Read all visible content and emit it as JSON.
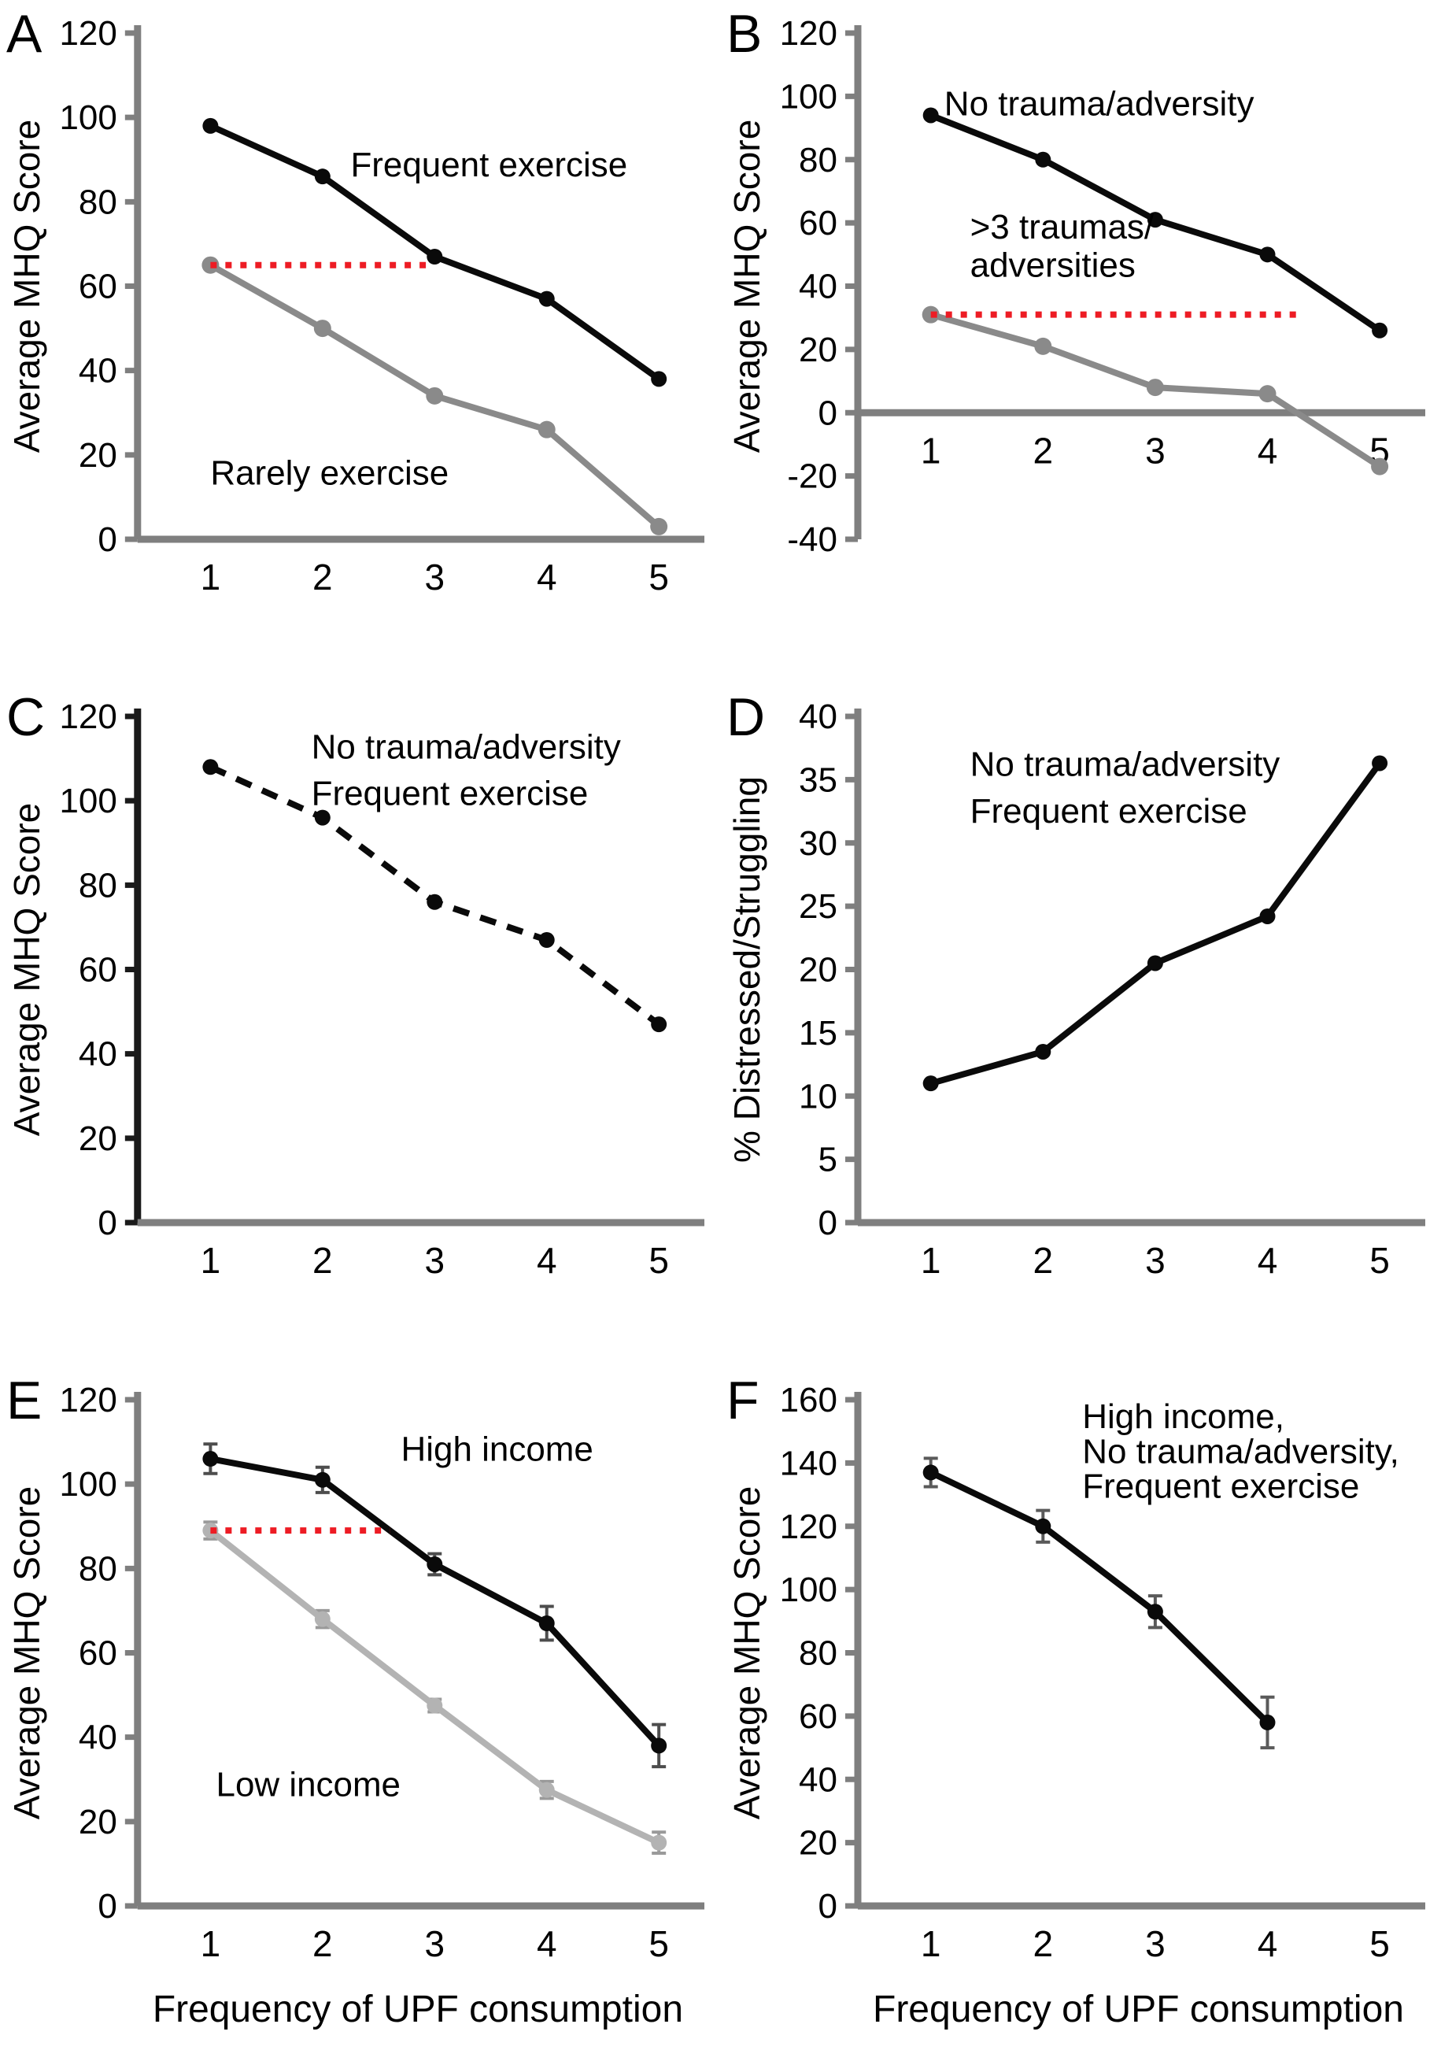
{
  "figure_title": "Six-panel line figure: MHQ outcomes by frequency of UPF consumption",
  "style": {
    "axis_color": "#7f7f7f",
    "black_series_color": "#0a0a0a",
    "gray_series_color": "#8a8a8a",
    "light_gray_series_color": "#b3b3b3",
    "ref_line_color": "#ed1c24",
    "panel_c_yaxis_color": "#1a1a1a"
  },
  "chart_data": [
    {
      "panel": "A",
      "type": "line",
      "ylabel": "Average MHQ Score",
      "xlabel": "",
      "ylim": [
        0,
        120
      ],
      "ytick_step": 20,
      "yticks": [
        "0",
        "20",
        "40",
        "60",
        "80",
        "100",
        "120"
      ],
      "xticklabels": [
        "1",
        "2",
        "3",
        "4",
        "5"
      ],
      "x": [
        1,
        2,
        3,
        4,
        5
      ],
      "grid": false,
      "legend_position": "annotated-inline",
      "series": [
        {
          "name": "Rarely exercise",
          "color": "#8a8a8a",
          "values": [
            65,
            50,
            34,
            26,
            3
          ],
          "marker_r": 11
        },
        {
          "name": "Frequent exercise",
          "color": "#0a0a0a",
          "values": [
            98,
            86,
            67,
            57,
            38
          ],
          "marker_r": 10
        }
      ],
      "ref_line": {
        "y": 65,
        "x_from": 1,
        "x_to": 2.93
      },
      "annotations": [
        {
          "text": "Frequent exercise",
          "x": 2.25,
          "y": 86,
          "anchor": "start"
        },
        {
          "text": "Rarely exercise",
          "x": 1.0,
          "y": 13,
          "anchor": "start"
        }
      ]
    },
    {
      "panel": "B",
      "type": "line",
      "ylabel": "Average MHQ Score",
      "xlabel": "",
      "ylim": [
        -40,
        120
      ],
      "ytick_step": 20,
      "yticks": [
        "-40",
        "-20",
        "0",
        "20",
        "40",
        "60",
        "80",
        "100",
        "120"
      ],
      "xticklabels": [
        "1",
        "2",
        "3",
        "4",
        "5"
      ],
      "x": [
        1,
        2,
        3,
        4,
        5
      ],
      "grid": false,
      "legend_position": "annotated-inline",
      "series": [
        {
          "name": ">3 traumas/adversities",
          "color": "#8a8a8a",
          "values": [
            31,
            21,
            8,
            6,
            -17
          ],
          "marker_r": 11
        },
        {
          "name": "No trauma/adversity",
          "color": "#0a0a0a",
          "values": [
            94,
            80,
            61,
            50,
            26
          ],
          "marker_r": 10
        }
      ],
      "ref_line": {
        "y": 31,
        "x_from": 1,
        "x_to": 4.32
      },
      "annotations": [
        {
          "text": "No trauma/adversity",
          "x": 1.12,
          "y": 94,
          "anchor": "start"
        },
        {
          "text": ">3 traumas/",
          "x": 1.35,
          "y": 55,
          "anchor": "start"
        },
        {
          "text": "adversities",
          "x": 1.35,
          "y": 43,
          "anchor": "start"
        }
      ]
    },
    {
      "panel": "C",
      "type": "line",
      "ylabel": "Average MHQ Score",
      "xlabel": "",
      "ylim": [
        0,
        120
      ],
      "ytick_step": 20,
      "yticks": [
        "0",
        "20",
        "40",
        "60",
        "80",
        "100",
        "120"
      ],
      "xticklabels": [
        "1",
        "2",
        "3",
        "4",
        "5"
      ],
      "x": [
        1,
        2,
        3,
        4,
        5
      ],
      "grid": false,
      "yaxis_color": "#1a1a1a",
      "legend_position": "annotated-inline",
      "series": [
        {
          "name": "No trauma/adversity, Frequent exercise",
          "color": "#0a0a0a",
          "values": [
            108,
            96,
            76,
            67,
            47
          ],
          "dash": "21 15",
          "marker_r": 10
        }
      ],
      "ref_line": null,
      "annotations": [
        {
          "text": "No trauma/adversity",
          "x": 1.9,
          "y": 110,
          "anchor": "start"
        },
        {
          "text": "Frequent exercise",
          "x": 1.9,
          "y": 99,
          "anchor": "start"
        }
      ]
    },
    {
      "panel": "D",
      "type": "line",
      "ylabel": "% Distressed/Struggling",
      "xlabel": "",
      "ylim": [
        0,
        40
      ],
      "ytick_step": 5,
      "yticks": [
        "0",
        "5",
        "10",
        "15",
        "20",
        "25",
        "30",
        "35",
        "40"
      ],
      "xticklabels": [
        "1",
        "2",
        "3",
        "4",
        "5"
      ],
      "x": [
        1,
        2,
        3,
        4,
        5
      ],
      "grid": false,
      "legend_position": "annotated-inline",
      "series": [
        {
          "name": "No trauma/adversity, Frequent exercise",
          "color": "#0a0a0a",
          "values": [
            11,
            13.5,
            20.5,
            24.2,
            36.3
          ],
          "marker_r": 10
        }
      ],
      "ref_line": null,
      "annotations": [
        {
          "text": "No trauma/adversity",
          "x": 1.35,
          "y": 35.3,
          "anchor": "start"
        },
        {
          "text": "Frequent exercise",
          "x": 1.35,
          "y": 31.6,
          "anchor": "start"
        }
      ]
    },
    {
      "panel": "E",
      "type": "line",
      "ylabel": "Average MHQ Score",
      "xlabel": "Frequency of UPF consumption",
      "ylim": [
        0,
        120
      ],
      "ytick_step": 20,
      "yticks": [
        "0",
        "20",
        "40",
        "60",
        "80",
        "100",
        "120"
      ],
      "xticklabels": [
        "1",
        "2",
        "3",
        "4",
        "5"
      ],
      "x": [
        1,
        2,
        3,
        4,
        5
      ],
      "grid": false,
      "legend_position": "annotated-inline",
      "series": [
        {
          "name": "Low income",
          "color": "#b3b3b3",
          "values": [
            89,
            68,
            47.5,
            27.5,
            15
          ],
          "errors": [
            2,
            2,
            1.5,
            2,
            2.5
          ],
          "error_color": "#9a9a9a",
          "marker_r": 10
        },
        {
          "name": "High income",
          "color": "#0a0a0a",
          "values": [
            106,
            101,
            81,
            67,
            38
          ],
          "errors": [
            3.5,
            3,
            2.5,
            4,
            5
          ],
          "error_color": "#4d4d4d",
          "marker_r": 10
        }
      ],
      "ref_line": {
        "y": 89,
        "x_from": 1,
        "x_to": 2.6
      },
      "annotations": [
        {
          "text": "High income",
          "x": 2.7,
          "y": 105.5,
          "anchor": "start"
        },
        {
          "text": "Low income",
          "x": 1.05,
          "y": 26,
          "anchor": "start"
        }
      ]
    },
    {
      "panel": "F",
      "type": "line",
      "ylabel": "Average MHQ Score",
      "xlabel": "Frequency of UPF consumption",
      "ylim": [
        0,
        160
      ],
      "ytick_step": 20,
      "yticks": [
        "0",
        "20",
        "40",
        "60",
        "80",
        "100",
        "120",
        "140",
        "160"
      ],
      "xticklabels": [
        "1",
        "2",
        "3",
        "4",
        "5"
      ],
      "x": [
        1,
        2,
        3,
        4
      ],
      "grid": false,
      "legend_position": "annotated-inline",
      "series": [
        {
          "name": "High income, No trauma/adversity, Frequent exercise",
          "color": "#0a0a0a",
          "values": [
            137,
            120,
            93,
            58
          ],
          "errors": [
            4.5,
            5,
            5,
            8
          ],
          "error_color": "#5a5a5a",
          "marker_r": 10
        }
      ],
      "ref_line": null,
      "annotations": [
        {
          "text": "High income,",
          "x": 2.35,
          "y": 151,
          "anchor": "start"
        },
        {
          "text": "No trauma/adversity,",
          "x": 2.35,
          "y": 140,
          "anchor": "start"
        },
        {
          "text": "Frequent exercise",
          "x": 2.35,
          "y": 129,
          "anchor": "start"
        }
      ]
    }
  ]
}
